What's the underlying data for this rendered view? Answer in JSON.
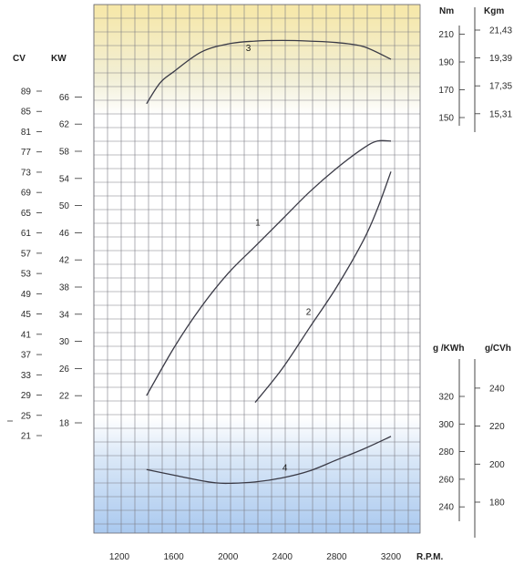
{
  "chart_data": {
    "type": "line",
    "title": "",
    "x_label": "R.P.M.",
    "x_ticks": [
      1200,
      1600,
      2000,
      2400,
      2800,
      3200
    ],
    "x_range": [
      1000,
      3400
    ],
    "grid": true,
    "axes": {
      "cv": {
        "unit": "CV",
        "ticks": [
          21,
          25,
          29,
          33,
          37,
          41,
          45,
          49,
          53,
          57,
          61,
          65,
          69,
          73,
          77,
          81,
          85,
          89
        ]
      },
      "kw": {
        "unit": "KW",
        "ticks": [
          18,
          22,
          26,
          30,
          34,
          38,
          42,
          46,
          50,
          54,
          58,
          62,
          66
        ],
        "range": [
          15,
          69
        ]
      },
      "nm": {
        "unit": "Nm",
        "ticks": [
          150,
          170,
          190,
          210
        ],
        "range": [
          145,
          215
        ]
      },
      "kgm": {
        "unit": "Kgm",
        "ticks": [
          "15,31",
          "17,35",
          "19,39",
          "21,43"
        ]
      },
      "gkwh": {
        "unit": "g /KWh",
        "ticks": [
          240,
          260,
          280,
          300,
          320
        ],
        "range": [
          226,
          334
        ]
      },
      "gcvh": {
        "unit": "g/CVh",
        "ticks": [
          180,
          200,
          220,
          240
        ]
      }
    },
    "series": [
      {
        "name": "1",
        "axis": "kw",
        "points": [
          [
            1400,
            22
          ],
          [
            1600,
            29
          ],
          [
            1800,
            35
          ],
          [
            2000,
            40
          ],
          [
            2200,
            44
          ],
          [
            2400,
            48
          ],
          [
            2600,
            52
          ],
          [
            2800,
            55.5
          ],
          [
            3000,
            58.5
          ],
          [
            3100,
            59.5
          ],
          [
            3200,
            59.5
          ]
        ]
      },
      {
        "name": "2",
        "axis": "kw",
        "points": [
          [
            2200,
            21
          ],
          [
            2400,
            26
          ],
          [
            2600,
            32
          ],
          [
            2800,
            38
          ],
          [
            3000,
            45
          ],
          [
            3100,
            49.5
          ],
          [
            3200,
            55
          ]
        ]
      },
      {
        "name": "3",
        "axis": "nm",
        "points": [
          [
            1400,
            160
          ],
          [
            1500,
            175
          ],
          [
            1600,
            183
          ],
          [
            1800,
            197
          ],
          [
            2000,
            203
          ],
          [
            2200,
            205
          ],
          [
            2400,
            205.5
          ],
          [
            2600,
            205
          ],
          [
            2800,
            204
          ],
          [
            3000,
            201
          ],
          [
            3200,
            192
          ]
        ]
      },
      {
        "name": "4",
        "axis": "gkwh",
        "points": [
          [
            1400,
            267
          ],
          [
            1600,
            263
          ],
          [
            1800,
            259
          ],
          [
            1900,
            257.5
          ],
          [
            2000,
            257
          ],
          [
            2200,
            258
          ],
          [
            2400,
            261
          ],
          [
            2600,
            266
          ],
          [
            2800,
            274
          ],
          [
            3000,
            282
          ],
          [
            3200,
            291
          ]
        ]
      }
    ]
  }
}
